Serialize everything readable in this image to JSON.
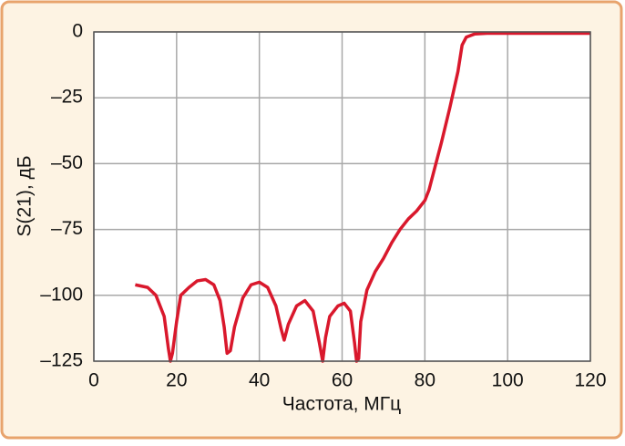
{
  "chart_data": {
    "type": "line",
    "x_label": "Частота, МГц",
    "y_label": "S(21), дБ",
    "xlim": [
      0,
      120
    ],
    "xticks": [
      0,
      20,
      40,
      60,
      80,
      100,
      120
    ],
    "ylim": [
      -125,
      0
    ],
    "yticks": [
      0,
      {
        "value": -25,
        "label": "–25"
      },
      {
        "value": -50,
        "label": "–50"
      },
      {
        "value": -75,
        "label": "–75"
      },
      {
        "value": -100,
        "label": "–100"
      },
      {
        "value": -125,
        "label": "–125"
      }
    ],
    "grid": true,
    "x": [
      10,
      13,
      15,
      17,
      18,
      18.5,
      19,
      20,
      21,
      23,
      25,
      27,
      29,
      30.5,
      31.5,
      32.2,
      33,
      34,
      36,
      38,
      40,
      42,
      44,
      45.3,
      46,
      47,
      49,
      51,
      53,
      54.5,
      55.3,
      56,
      57,
      59,
      60.5,
      62,
      63,
      63.5,
      64,
      64.5,
      66,
      68,
      70,
      72,
      74,
      76,
      78,
      80,
      81,
      82,
      84,
      86,
      88,
      89,
      90,
      92,
      95,
      100,
      110,
      120
    ],
    "series": [
      {
        "color": "#d9182c",
        "values": [
          -96,
          -97,
          -100,
          -108,
          -120,
          -125,
          -122,
          -110,
          -100,
          -97,
          -94.5,
          -94,
          -96,
          -102,
          -112,
          -122,
          -121,
          -112,
          -101,
          -96,
          -95,
          -97,
          -104,
          -113,
          -117,
          -111,
          -104,
          -102,
          -106,
          -118,
          -125,
          -116,
          -108,
          -104,
          -103,
          -106,
          -118,
          -125,
          -124,
          -110,
          -98,
          -91,
          -86,
          -80,
          -75,
          -71,
          -68,
          -64,
          -60,
          -54,
          -42,
          -29,
          -15,
          -5,
          -2,
          -0.8,
          -0.5,
          -0.5,
          -0.5,
          -0.5
        ]
      }
    ]
  }
}
